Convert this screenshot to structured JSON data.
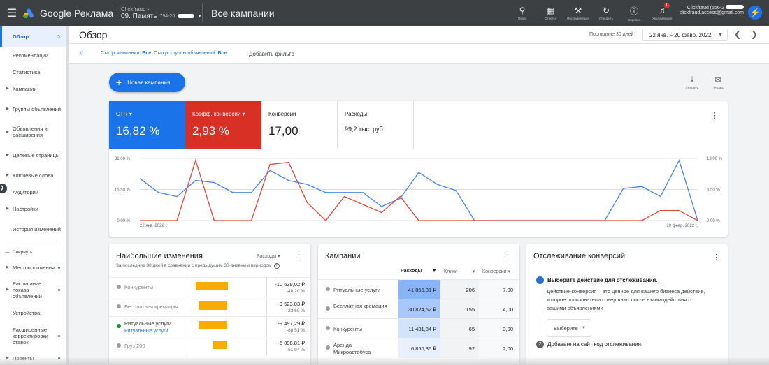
{
  "topbar": {
    "app_name": "Google Реклама",
    "account_label": "Clickfraud",
    "account_name": "09. Память",
    "account_id": "794-20",
    "page_title": "Все кампании",
    "tools": [
      {
        "icon": "search-icon",
        "label": "Поиск"
      },
      {
        "icon": "reports-icon",
        "label": "Отчеты"
      },
      {
        "icon": "tools-icon",
        "label": "Инструменты и"
      },
      {
        "icon": "refresh-icon",
        "label": "Обновить"
      },
      {
        "icon": "help-icon",
        "label": "Справка"
      },
      {
        "icon": "bell-icon",
        "label": "Уведомления",
        "badge": "1"
      }
    ],
    "user_line1": "Clickfraud (556-2",
    "user_line2": "clickfraud.access@gmail.com"
  },
  "sidebar": {
    "items": [
      {
        "label": "Обзор",
        "active": true
      },
      {
        "label": "Рекомендации"
      },
      {
        "label": "Статистика"
      },
      {
        "label": "Кампании",
        "arrow": true
      },
      {
        "label": "Группы объявлений",
        "arrow": true
      },
      {
        "label": "Объявления и расширения",
        "arrow": true
      },
      {
        "label": "Целевые страницы",
        "arrow": true
      },
      {
        "label": "Ключевые слова",
        "arrow": true
      },
      {
        "label": "Аудитории"
      },
      {
        "label": "Настройки",
        "arrow": true
      },
      {
        "label": "История изменений"
      }
    ],
    "collapse_label": "Свернуть",
    "more_items": [
      {
        "label": "Местоположения",
        "arrow": true,
        "dot": true
      },
      {
        "label": "Расписание показа объявлений",
        "arrow": true,
        "dot": true
      },
      {
        "label": "Устройства"
      },
      {
        "label": "Расширенные корректировки ставок",
        "dot": true
      },
      {
        "label": "Проекты",
        "arrow": true,
        "dot": true
      }
    ]
  },
  "header": {
    "title": "Обзор",
    "period_label": "Последние 30 дней",
    "date_range": "22 янв. – 20 февр. 2022"
  },
  "filters": {
    "status_prefix": "Статус кампании: ",
    "status_value": "Все",
    "group_prefix": "; Статус группы объявлений: ",
    "group_value": "Все",
    "add_filter": "Добавить фильтр"
  },
  "actions": {
    "new_campaign": "Новая кампания",
    "download": "Скачать",
    "feedback": "Отзывы"
  },
  "metrics": [
    {
      "label": "CTR",
      "value": "16,82 %",
      "style": "blue",
      "dropdown": true
    },
    {
      "label": "Коэфф. конверсии",
      "value": "2,93 %",
      "style": "red",
      "dropdown": true
    },
    {
      "label": "Конверсии",
      "value": "17,00",
      "style": "plain"
    },
    {
      "label": "Расходы",
      "value": "99,2 тыс. руб.",
      "style": "plain",
      "small": true
    }
  ],
  "chart_data": {
    "type": "line",
    "left_ticks": [
      "31,00 %",
      "15,50 %",
      "0,00 %"
    ],
    "right_ticks": [
      "13,00 %",
      "6,50 %",
      "0,00 %"
    ],
    "x_start_label": "22 янв. 2022 г.",
    "x_end_label": "20 февр. 2022 г.",
    "left_ylim": [
      0,
      31
    ],
    "right_ylim": [
      0,
      13
    ],
    "series": [
      {
        "name": "CTR",
        "color": "#4285f4",
        "axis": "left",
        "values": [
          21,
          14,
          12,
          20,
          19,
          14,
          14,
          25,
          20,
          18,
          14,
          14,
          14,
          7,
          11,
          24,
          18,
          15,
          0,
          0,
          0,
          0,
          0,
          0,
          0,
          0,
          16,
          17,
          12,
          30,
          0
        ]
      },
      {
        "name": "Коэфф. конверсии",
        "color": "#ea4335",
        "axis": "left",
        "values": [
          0,
          0,
          0,
          30,
          0,
          0,
          0,
          28,
          29,
          9,
          0,
          12,
          8,
          4,
          12,
          0,
          0,
          0,
          0,
          0,
          0,
          0,
          0,
          0,
          0,
          0,
          0,
          0,
          5,
          5,
          0
        ]
      }
    ]
  },
  "changes": {
    "title": "Наибольшие изменения",
    "metric_select": "Расходы",
    "subtitle": "За последние 30 дней в сравнении с предыдущим 30-дневным периодом",
    "rows": [
      {
        "name": "Конкуренты",
        "value": "-10 639,02 ₽",
        "pct": "-48,20 %",
        "bar": 0.4,
        "dot": "#9aa0a6",
        "dark": false
      },
      {
        "name": "Бесплатная кремация",
        "value": "-9 523,03 ₽",
        "pct": "-23,60 %",
        "bar": 0.36,
        "dot": "#9aa0a6",
        "dark": false
      },
      {
        "name": "Ритуальные услуги",
        "sub": "Ритуальные услуги",
        "value": "-9 497,29 ₽",
        "pct": "-88,51 %",
        "bar": 0.36,
        "dot": "#1e8e3e",
        "dark": true
      },
      {
        "name": "Груз 200",
        "value": "-5 098,81 ₽",
        "pct": "-51,94 %",
        "bar": 0.19,
        "dot": "#9aa0a6",
        "dark": false
      }
    ]
  },
  "campaigns": {
    "title": "Кампании",
    "headers": [
      "Расходы",
      "Клики",
      "Конверсии"
    ],
    "rows": [
      {
        "name": "Ритуальные услуги",
        "cost": "41 866,31 ₽",
        "clicks": "206",
        "conv": "7,00",
        "shade": "#8ab4f8"
      },
      {
        "name": "Бесплатная кремация",
        "cost": "30 824,52 ₽",
        "clicks": "155",
        "conv": "4,00",
        "shade": "#a8c7fa"
      },
      {
        "name": "Конкуренты",
        "cost": "11 431,84 ₽",
        "clicks": "65",
        "conv": "3,00",
        "shade": "#d2e3fc"
      },
      {
        "name": "Аренда Микроавтобуса",
        "cost": "6 856,35 ₽",
        "clicks": "92",
        "conv": "2,00",
        "shade": "#e8f0fe"
      }
    ]
  },
  "conversions": {
    "title": "Отслеживание конверсий",
    "step1_num": "1",
    "step1": "Выберите действие для отслеживания.",
    "desc": "Действие-конверсия – это ценное для вашего бизнеса действие, которое пользователи совершают после взаимодействия с вашими объявлениями",
    "choose": "Выберите",
    "step2_num": "2",
    "step2": "Добавьте на сайт код отслеживания."
  }
}
